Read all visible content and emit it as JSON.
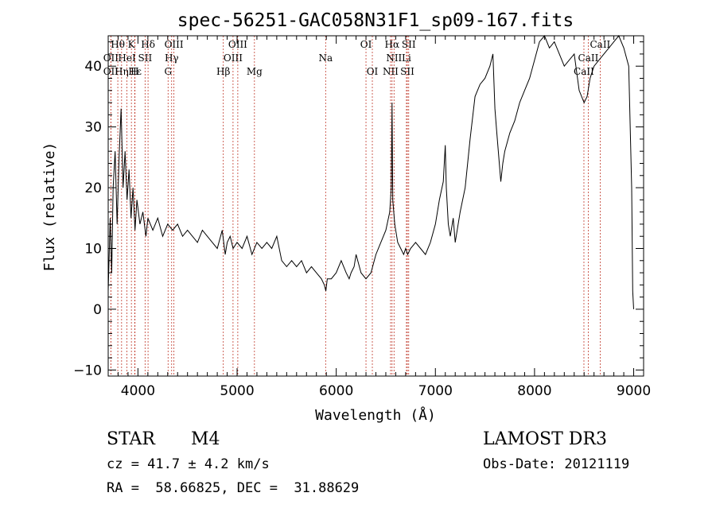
{
  "chart_data": {
    "type": "line",
    "title": "spec-56251-GAC058N31F1_sp09-167.fits",
    "xlabel": "Wavelength (Å)",
    "ylabel": "Flux (relative)",
    "xlim": [
      3700,
      9100
    ],
    "ylim": [
      -11,
      45
    ],
    "xticks": [
      4000,
      5000,
      6000,
      7000,
      8000,
      9000
    ],
    "yticks": [
      -10,
      0,
      10,
      20,
      30,
      40
    ],
    "grid": false,
    "series": [
      {
        "name": "spectrum",
        "x": [
          3700,
          3720,
          3735,
          3750,
          3770,
          3790,
          3810,
          3830,
          3850,
          3870,
          3890,
          3910,
          3930,
          3950,
          3970,
          3990,
          4020,
          4050,
          4080,
          4100,
          4150,
          4200,
          4250,
          4300,
          4350,
          4400,
          4450,
          4500,
          4550,
          4600,
          4650,
          4700,
          4750,
          4800,
          4850,
          4880,
          4900,
          4930,
          4960,
          5000,
          5050,
          5100,
          5150,
          5200,
          5250,
          5300,
          5350,
          5400,
          5450,
          5500,
          5550,
          5600,
          5650,
          5700,
          5750,
          5800,
          5850,
          5880,
          5895,
          5910,
          5950,
          6000,
          6050,
          6100,
          6130,
          6150,
          6180,
          6200,
          6250,
          6300,
          6350,
          6400,
          6450,
          6500,
          6540,
          6555,
          6563,
          6570,
          6590,
          6620,
          6650,
          6680,
          6700,
          6720,
          6750,
          6800,
          6850,
          6900,
          6950,
          7000,
          7040,
          7080,
          7100,
          7110,
          7130,
          7150,
          7180,
          7200,
          7250,
          7300,
          7350,
          7400,
          7450,
          7500,
          7550,
          7580,
          7600,
          7620,
          7640,
          7660,
          7680,
          7700,
          7750,
          7800,
          7850,
          7900,
          7950,
          8000,
          8050,
          8100,
          8150,
          8200,
          8250,
          8300,
          8350,
          8400,
          8450,
          8500,
          8530,
          8560,
          8600,
          8650,
          8700,
          8750,
          8800,
          8850,
          8900,
          8950,
          8980,
          8990,
          9000
        ],
        "values": [
          3,
          15,
          6,
          20,
          26,
          14,
          25,
          33,
          20,
          26,
          18,
          23,
          15,
          20,
          13,
          18,
          14,
          16,
          12,
          15,
          13,
          15,
          12,
          14,
          13,
          14,
          12,
          13,
          12,
          11,
          13,
          12,
          11,
          10,
          13,
          9,
          11,
          12,
          10,
          11,
          10,
          12,
          9,
          11,
          10,
          11,
          10,
          12,
          8,
          7,
          8,
          7,
          8,
          6,
          7,
          6,
          5,
          4,
          3,
          5,
          5,
          6,
          8,
          6,
          5,
          6,
          7,
          9,
          6,
          5,
          6,
          9,
          11,
          13,
          16,
          20,
          34,
          18,
          14,
          11,
          10,
          9,
          10,
          9,
          10,
          11,
          10,
          9,
          11,
          14,
          18,
          21,
          27,
          20,
          14,
          12,
          15,
          11,
          16,
          20,
          28,
          35,
          37,
          38,
          40,
          42,
          33,
          29,
          25,
          21,
          24,
          26,
          29,
          31,
          34,
          36,
          38,
          41,
          44,
          45,
          43,
          44,
          42,
          40,
          41,
          42,
          36,
          34,
          35,
          38,
          40,
          41,
          42,
          43,
          44,
          45,
          43,
          40,
          20,
          3,
          0
        ]
      }
    ],
    "spectral_lines": [
      {
        "label": "Hθ",
        "x": 3797,
        "row": 0
      },
      {
        "label": "K",
        "x": 3934,
        "row": 0
      },
      {
        "label": "Hδ",
        "x": 4102,
        "row": 0
      },
      {
        "label": "OIII",
        "x": 4363,
        "row": 0
      },
      {
        "label": "OIII",
        "x": 5007,
        "row": 0
      },
      {
        "label": "OI",
        "x": 6300,
        "row": 0
      },
      {
        "label": "Hα",
        "x": 6563,
        "row": 0
      },
      {
        "label": "SII",
        "x": 6731,
        "row": 0
      },
      {
        "label": "CaII",
        "x": 8662,
        "row": 0
      },
      {
        "label": "OII",
        "x": 3727,
        "row": 1
      },
      {
        "label": "HeI",
        "x": 3889,
        "row": 1
      },
      {
        "label": "SII",
        "x": 4072,
        "row": 1
      },
      {
        "label": "Hγ",
        "x": 4340,
        "row": 1
      },
      {
        "label": "OIII",
        "x": 4959,
        "row": 1
      },
      {
        "label": "Na",
        "x": 5893,
        "row": 1
      },
      {
        "label": "NII",
        "x": 6583,
        "row": 1
      },
      {
        "label": "Li",
        "x": 6708,
        "row": 1
      },
      {
        "label": "CaII",
        "x": 8542,
        "row": 1
      },
      {
        "label": "OII",
        "x": 3727,
        "row": 2
      },
      {
        "label": "Hε",
        "x": 3970,
        "row": 2
      },
      {
        "label": "Hη",
        "x": 3835,
        "row": 2
      },
      {
        "label": "H",
        "x": 3968,
        "row": 2
      },
      {
        "label": "G",
        "x": 4304,
        "row": 2
      },
      {
        "label": "Hβ",
        "x": 4861,
        "row": 2
      },
      {
        "label": "Mg",
        "x": 5175,
        "row": 2
      },
      {
        "label": "OI",
        "x": 6364,
        "row": 2
      },
      {
        "label": "NII",
        "x": 6548,
        "row": 2
      },
      {
        "label": "SII",
        "x": 6717,
        "row": 2
      },
      {
        "label": "CaII",
        "x": 8498,
        "row": 2
      }
    ]
  },
  "info": {
    "object_class": "STAR",
    "subclass": "M4",
    "survey": "LAMOST DR3",
    "cz": "cz = 41.7 ± 4.2 km/s",
    "obs_date": "Obs-Date: 20121119",
    "coords": "RA =  58.66825, DEC =  31.88629"
  }
}
